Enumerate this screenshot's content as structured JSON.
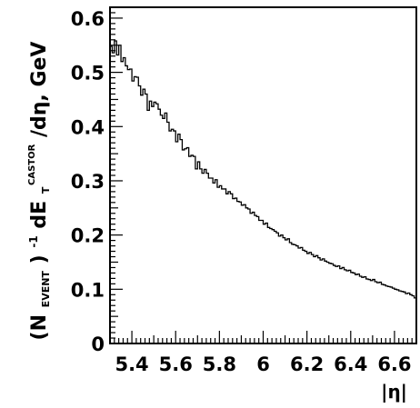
{
  "chart_data": {
    "type": "histogram",
    "xlabel": "|η|",
    "ylabel": {
      "prefix": "(N",
      "prefix_sub": "EVENT",
      "prefix_end": ")",
      "exp": "-1",
      "mid": "dE",
      "mid_sub": "T",
      "mid_sup": "CASTOR",
      "suffix": "/dη, GeV"
    },
    "xlim": [
      5.3,
      6.7
    ],
    "ylim": [
      0,
      0.62
    ],
    "xticks": [
      {
        "value": 5.4,
        "label": "5.4"
      },
      {
        "value": 5.6,
        "label": "5.6"
      },
      {
        "value": 5.8,
        "label": "5.8"
      },
      {
        "value": 6.0,
        "label": "6"
      },
      {
        "value": 6.2,
        "label": "6.2"
      },
      {
        "value": 6.4,
        "label": "6.4"
      },
      {
        "value": 6.6,
        "label": "6.6"
      }
    ],
    "yticks": [
      {
        "value": 0,
        "label": "0"
      },
      {
        "value": 0.1,
        "label": "0.1"
      },
      {
        "value": 0.2,
        "label": "0.2"
      },
      {
        "value": 0.3,
        "label": "0.3"
      },
      {
        "value": 0.4,
        "label": "0.4"
      },
      {
        "value": 0.5,
        "label": "0.5"
      },
      {
        "value": 0.6,
        "label": "0.6"
      }
    ],
    "bin_start": 5.3,
    "bin_width": 0.01,
    "values": [
      0.548,
      0.536,
      0.558,
      0.532,
      0.55,
      0.52,
      0.527,
      0.512,
      0.505,
      0.506,
      0.484,
      0.492,
      0.491,
      0.475,
      0.458,
      0.469,
      0.46,
      0.43,
      0.447,
      0.437,
      0.445,
      0.442,
      0.432,
      0.421,
      0.415,
      0.425,
      0.408,
      0.392,
      0.395,
      0.392,
      0.372,
      0.386,
      0.376,
      0.357,
      0.359,
      0.361,
      0.345,
      0.347,
      0.345,
      0.322,
      0.335,
      0.322,
      0.314,
      0.321,
      0.314,
      0.305,
      0.305,
      0.296,
      0.302,
      0.288,
      0.291,
      0.285,
      0.285,
      0.276,
      0.28,
      0.276,
      0.267,
      0.268,
      0.262,
      0.261,
      0.255,
      0.256,
      0.25,
      0.248,
      0.24,
      0.242,
      0.236,
      0.234,
      0.227,
      0.227,
      0.22,
      0.222,
      0.214,
      0.212,
      0.21,
      0.207,
      0.204,
      0.198,
      0.2,
      0.195,
      0.191,
      0.193,
      0.186,
      0.183,
      0.182,
      0.18,
      0.176,
      0.177,
      0.172,
      0.17,
      0.166,
      0.168,
      0.164,
      0.16,
      0.162,
      0.158,
      0.154,
      0.156,
      0.152,
      0.15,
      0.148,
      0.147,
      0.144,
      0.142,
      0.143,
      0.138,
      0.14,
      0.136,
      0.134,
      0.135,
      0.131,
      0.13,
      0.127,
      0.128,
      0.124,
      0.122,
      0.123,
      0.119,
      0.118,
      0.116,
      0.118,
      0.114,
      0.112,
      0.113,
      0.109,
      0.108,
      0.106,
      0.105,
      0.104,
      0.102,
      0.1,
      0.099,
      0.097,
      0.096,
      0.095,
      0.092,
      0.093,
      0.09,
      0.088,
      0.084
    ],
    "line_color": "#000000",
    "grid": false
  }
}
